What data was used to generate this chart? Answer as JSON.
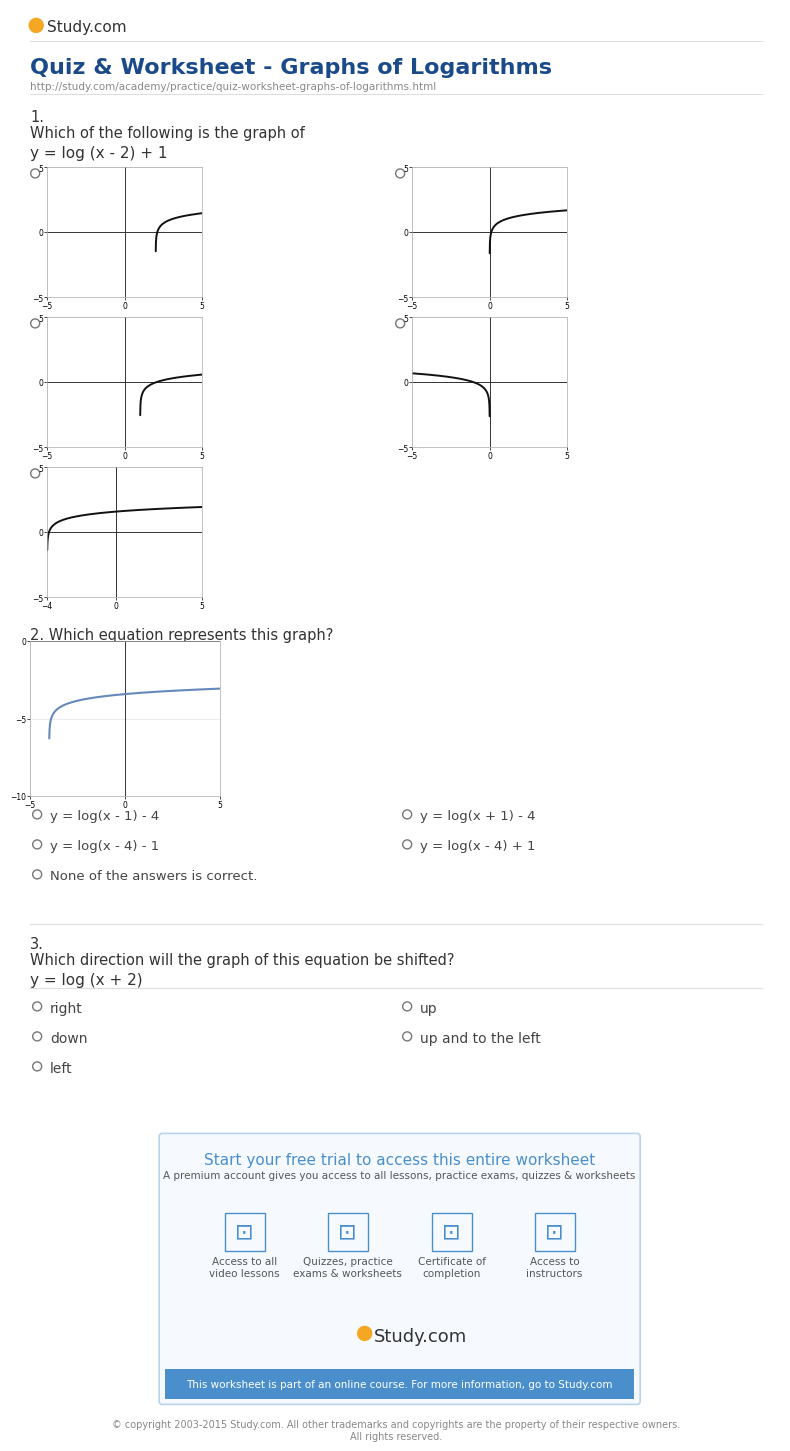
{
  "title": "Quiz & Worksheet - Graphs of Logarithms",
  "url": "http://study.com/academy/practice/quiz-worksheet-graphs-of-logarithms.html",
  "bg_color": "#ffffff",
  "text_color": "#333333",
  "q1_label": "1.",
  "q1_line1": "Which of the following is the graph of",
  "q1_eq": "y = log (x - 2) + 1",
  "q2_text": "2. Which equation represents this graph?",
  "q3_label": "3.",
  "q3_line1": "Which direction will the graph of this equation be shifted?",
  "q3_eq": "y = log (x + 2)",
  "radio_color": "#777777",
  "answer_color": "#444444",
  "blue_color": "#4a8fcc",
  "box_border": "#b8d4ec",
  "box_fill": "#f6faff",
  "footer_bar_color": "#4a8fcc",
  "footer_text": "This worksheet is part of an online course. For more information, go to Study.com",
  "copyright_text": "© copyright 2003-2015 Study.com. All other trademarks and copyrights are the property of their respective owners.\nAll rights reserved.",
  "q2_answers_col1": [
    "y = log(x - 1) - 4",
    "y = log(x - 4) - 1",
    "None of the answers is correct."
  ],
  "q2_answers_col2": [
    "y = log(x + 1) - 4",
    "y = log(x - 4) + 1"
  ],
  "q3_answers_col1": [
    "right",
    "down",
    "left"
  ],
  "q3_answers_col2": [
    "up",
    "up and to the left"
  ],
  "icon_labels": [
    "Access to all\nvideo lessons",
    "Quizzes, practice\nexams & worksheets",
    "Certificate of\ncompletion",
    "Access to\ninstructors"
  ]
}
